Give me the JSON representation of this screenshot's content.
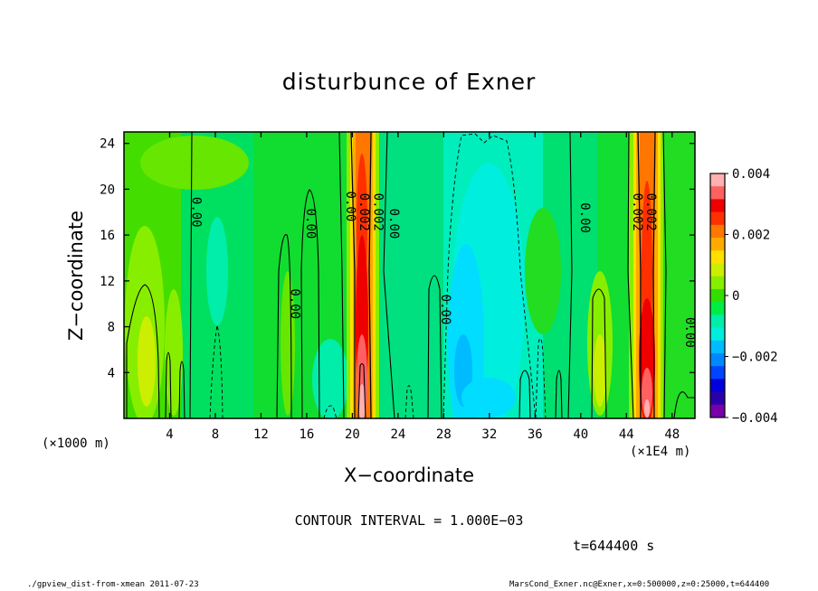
{
  "figure": {
    "title": "disturbunce of Exner",
    "xlabel": "X−coordinate",
    "ylabel": "Z−coordinate",
    "x_unit_left": "(×1000 m)",
    "x_unit_right": "(×1E4 m)",
    "contour_interval": "CONTOUR INTERVAL = 1.000E−03",
    "time": "t=644400 s",
    "footer_left": "./gpview_dist-from-xmean  2011-07-23",
    "footer_right": "MarsCond_Exner.nc@Exner,x=0:500000,z=0:25000,t=644400"
  },
  "chart_data": {
    "type": "heatmap",
    "title": "disturbunce of Exner",
    "xlabel": "X−coordinate",
    "ylabel": "Z−coordinate",
    "x_ticks": [
      4,
      8,
      12,
      16,
      20,
      24,
      28,
      32,
      36,
      40,
      44,
      48
    ],
    "y_ticks": [
      4,
      8,
      12,
      16,
      20,
      24
    ],
    "xlim": [
      0,
      50
    ],
    "ylim": [
      0,
      25
    ],
    "colorbar": {
      "ticks": [
        "0.004",
        "0.002",
        "0",
        "−0.002",
        "−0.004"
      ],
      "range": [
        -0.004,
        0.004
      ],
      "colors": [
        "#ffb0b0",
        "#ff6060",
        "#ee0000",
        "#ff3000",
        "#ff7700",
        "#ffaa00",
        "#ffe000",
        "#ccee00",
        "#88ee00",
        "#33dd00",
        "#00ee44",
        "#00eeaa",
        "#00eedd",
        "#00bbff",
        "#0088ff",
        "#0044ff",
        "#0000dd",
        "#2a00aa",
        "#7700aa"
      ]
    },
    "contour_labels": [
      {
        "text": "0.00",
        "x": 6,
        "z": 18
      },
      {
        "text": "0.00",
        "x": 16,
        "z": 17
      },
      {
        "text": "0.00",
        "x": 14.6,
        "z": 10
      },
      {
        "text": "0.00",
        "x": 19.5,
        "z": 18.5
      },
      {
        "text": "0.002",
        "x": 20.7,
        "z": 18
      },
      {
        "text": "0.002",
        "x": 21.9,
        "z": 18
      },
      {
        "text": "0.00",
        "x": 23.3,
        "z": 17
      },
      {
        "text": "0.00",
        "x": 27.8,
        "z": 9.5
      },
      {
        "text": "0.00",
        "x": 40,
        "z": 17.5
      },
      {
        "text": "0.002",
        "x": 44.6,
        "z": 18
      },
      {
        "text": "0.002",
        "x": 45.8,
        "z": 18
      },
      {
        "text": "0.00",
        "x": 49.2,
        "z": 7.5
      }
    ]
  }
}
